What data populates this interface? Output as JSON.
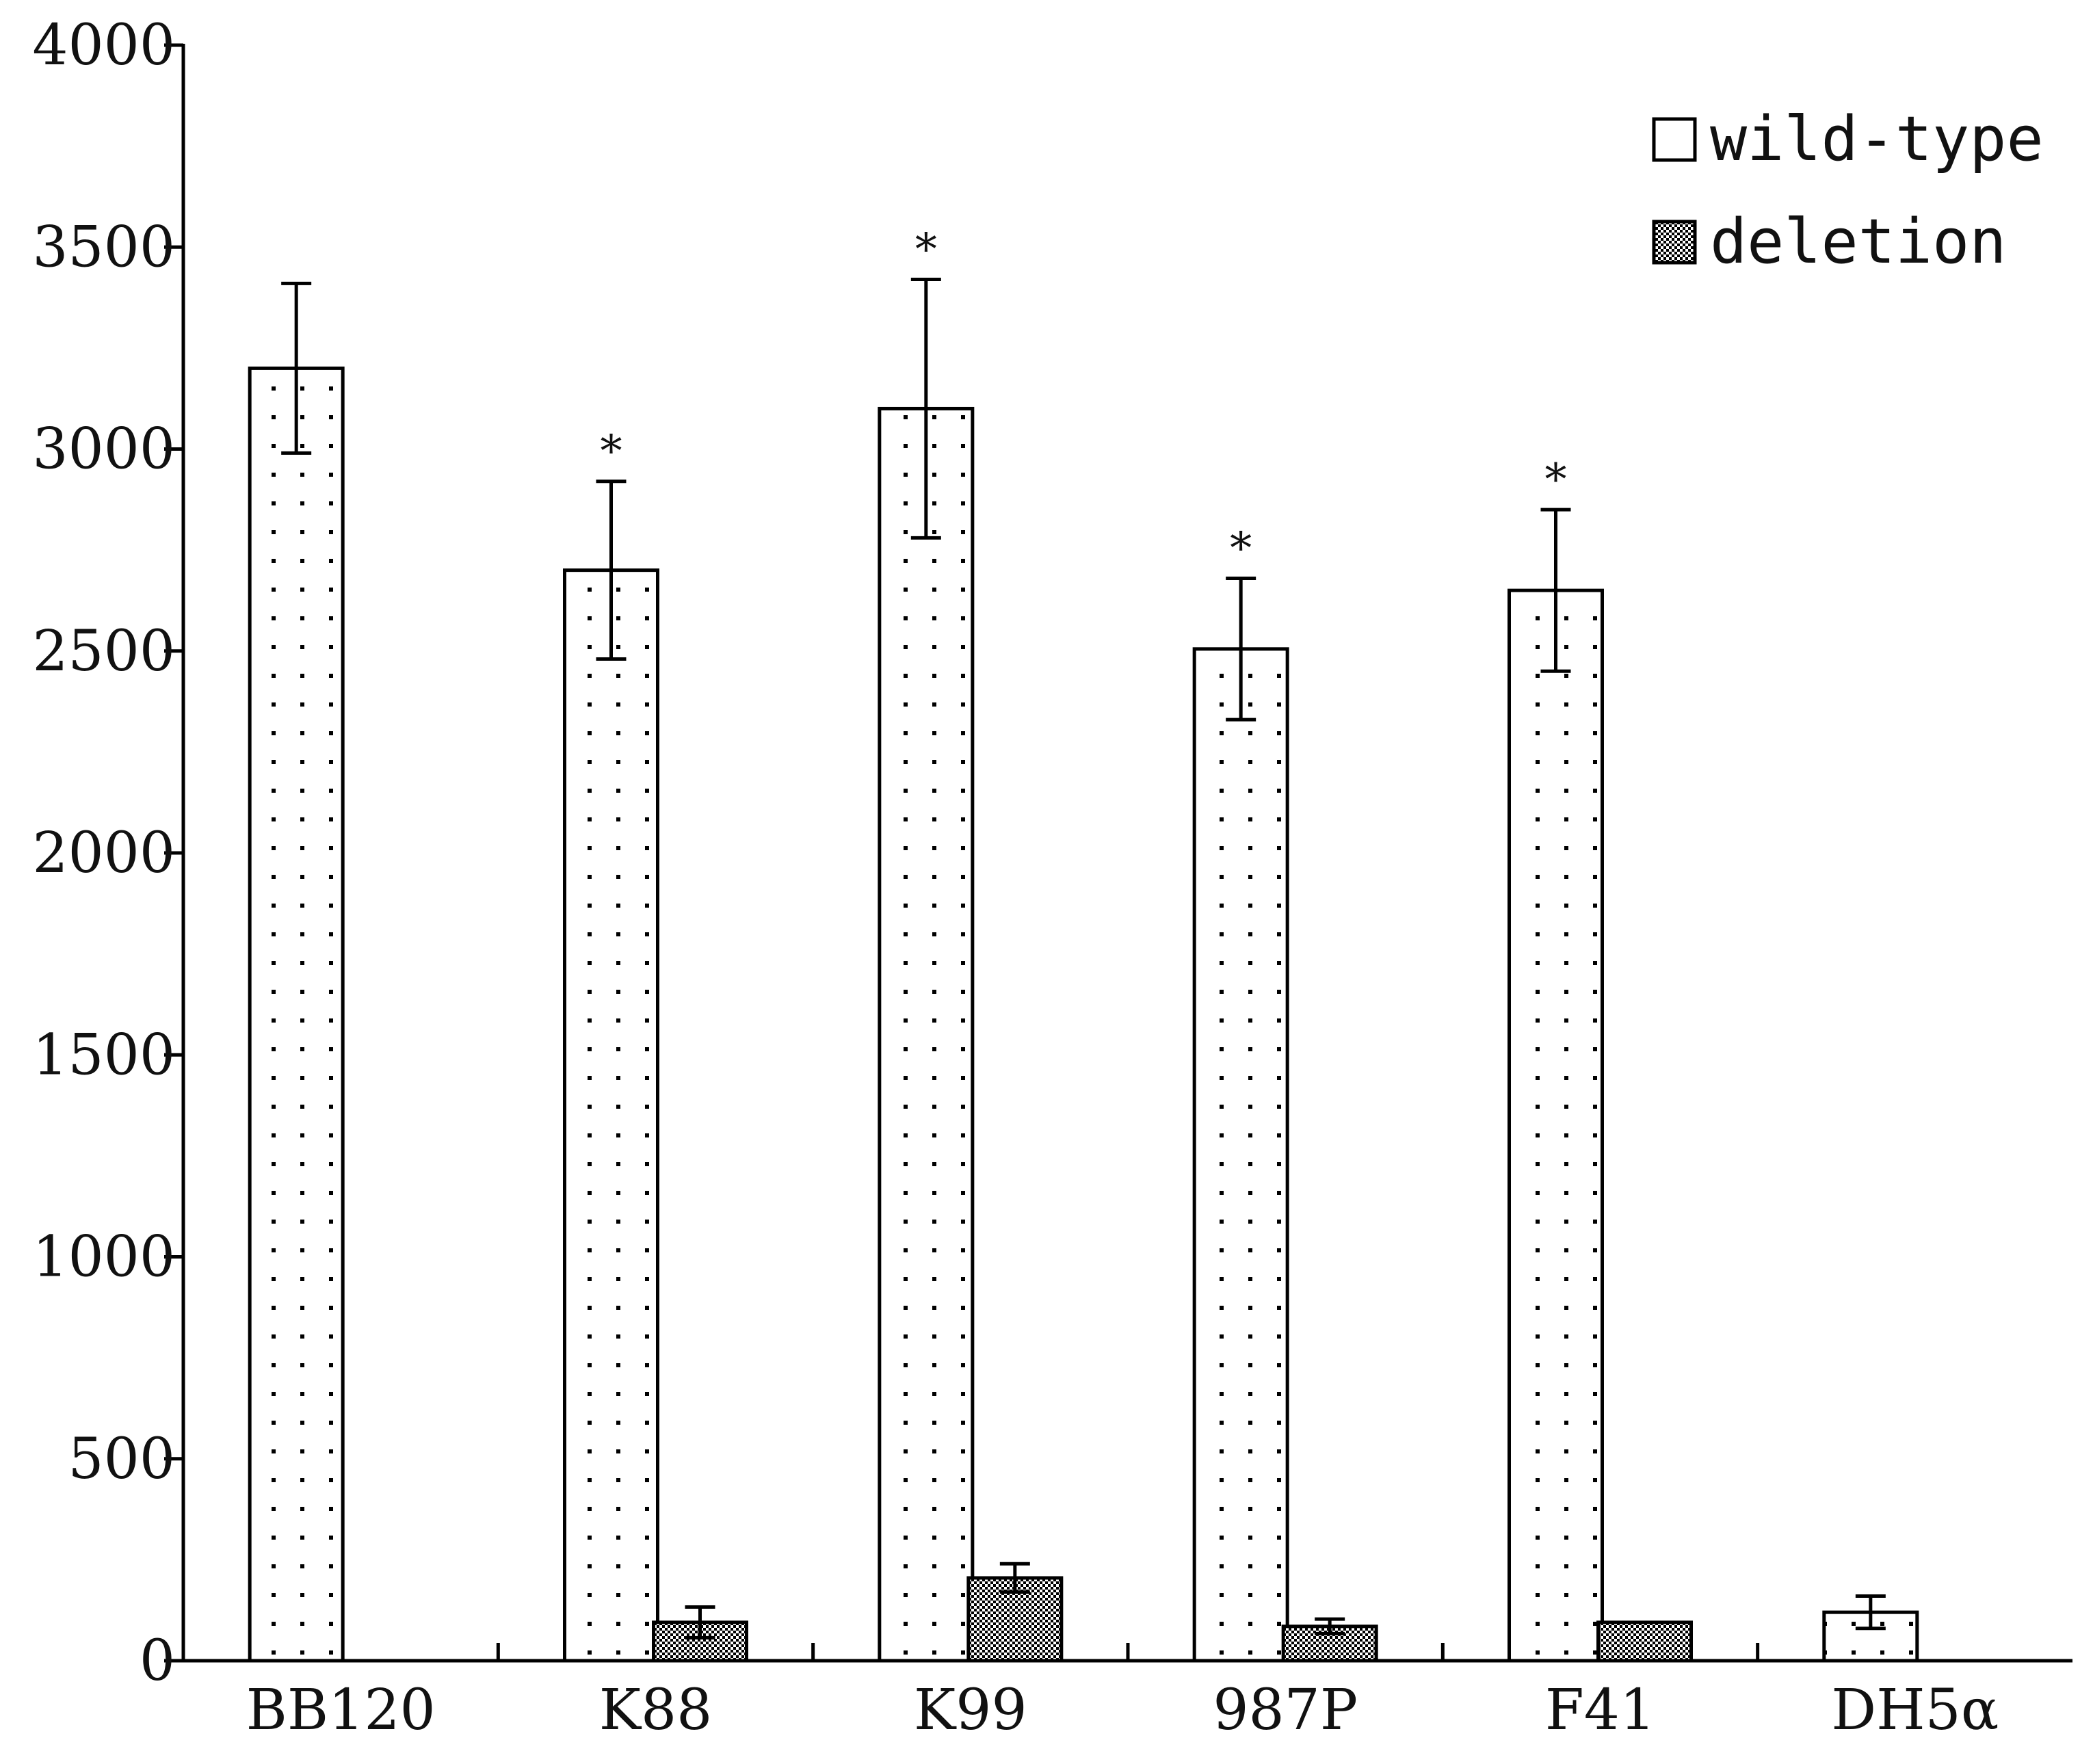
{
  "chart_data": {
    "type": "bar",
    "categories": [
      "BB120",
      "K88",
      "K99",
      "987P",
      "F41",
      "DH5α"
    ],
    "ylim": [
      0,
      4000
    ],
    "yticks": [
      0,
      500,
      1000,
      1500,
      2000,
      2500,
      3000,
      3500,
      4000
    ],
    "legend": {
      "position": "top-right"
    },
    "series": [
      {
        "name": "wild-type",
        "fill": "dotted",
        "values": [
          3200,
          2700,
          3100,
          2505,
          2650,
          120
        ],
        "errors": [
          210,
          220,
          320,
          175,
          200,
          40
        ],
        "significance": [
          "",
          "*",
          "*",
          "*",
          "*",
          ""
        ]
      },
      {
        "name": "deletion",
        "fill": "checkered",
        "values": [
          null,
          95,
          205,
          85,
          95,
          null
        ],
        "errors": [
          null,
          38,
          35,
          18,
          0,
          null
        ],
        "significance": [
          "",
          "",
          "",
          "",
          "",
          ""
        ]
      }
    ],
    "colors": {
      "axis": "#000000",
      "bar_stroke": "#000000",
      "bar_bg": "#ffffff"
    }
  }
}
